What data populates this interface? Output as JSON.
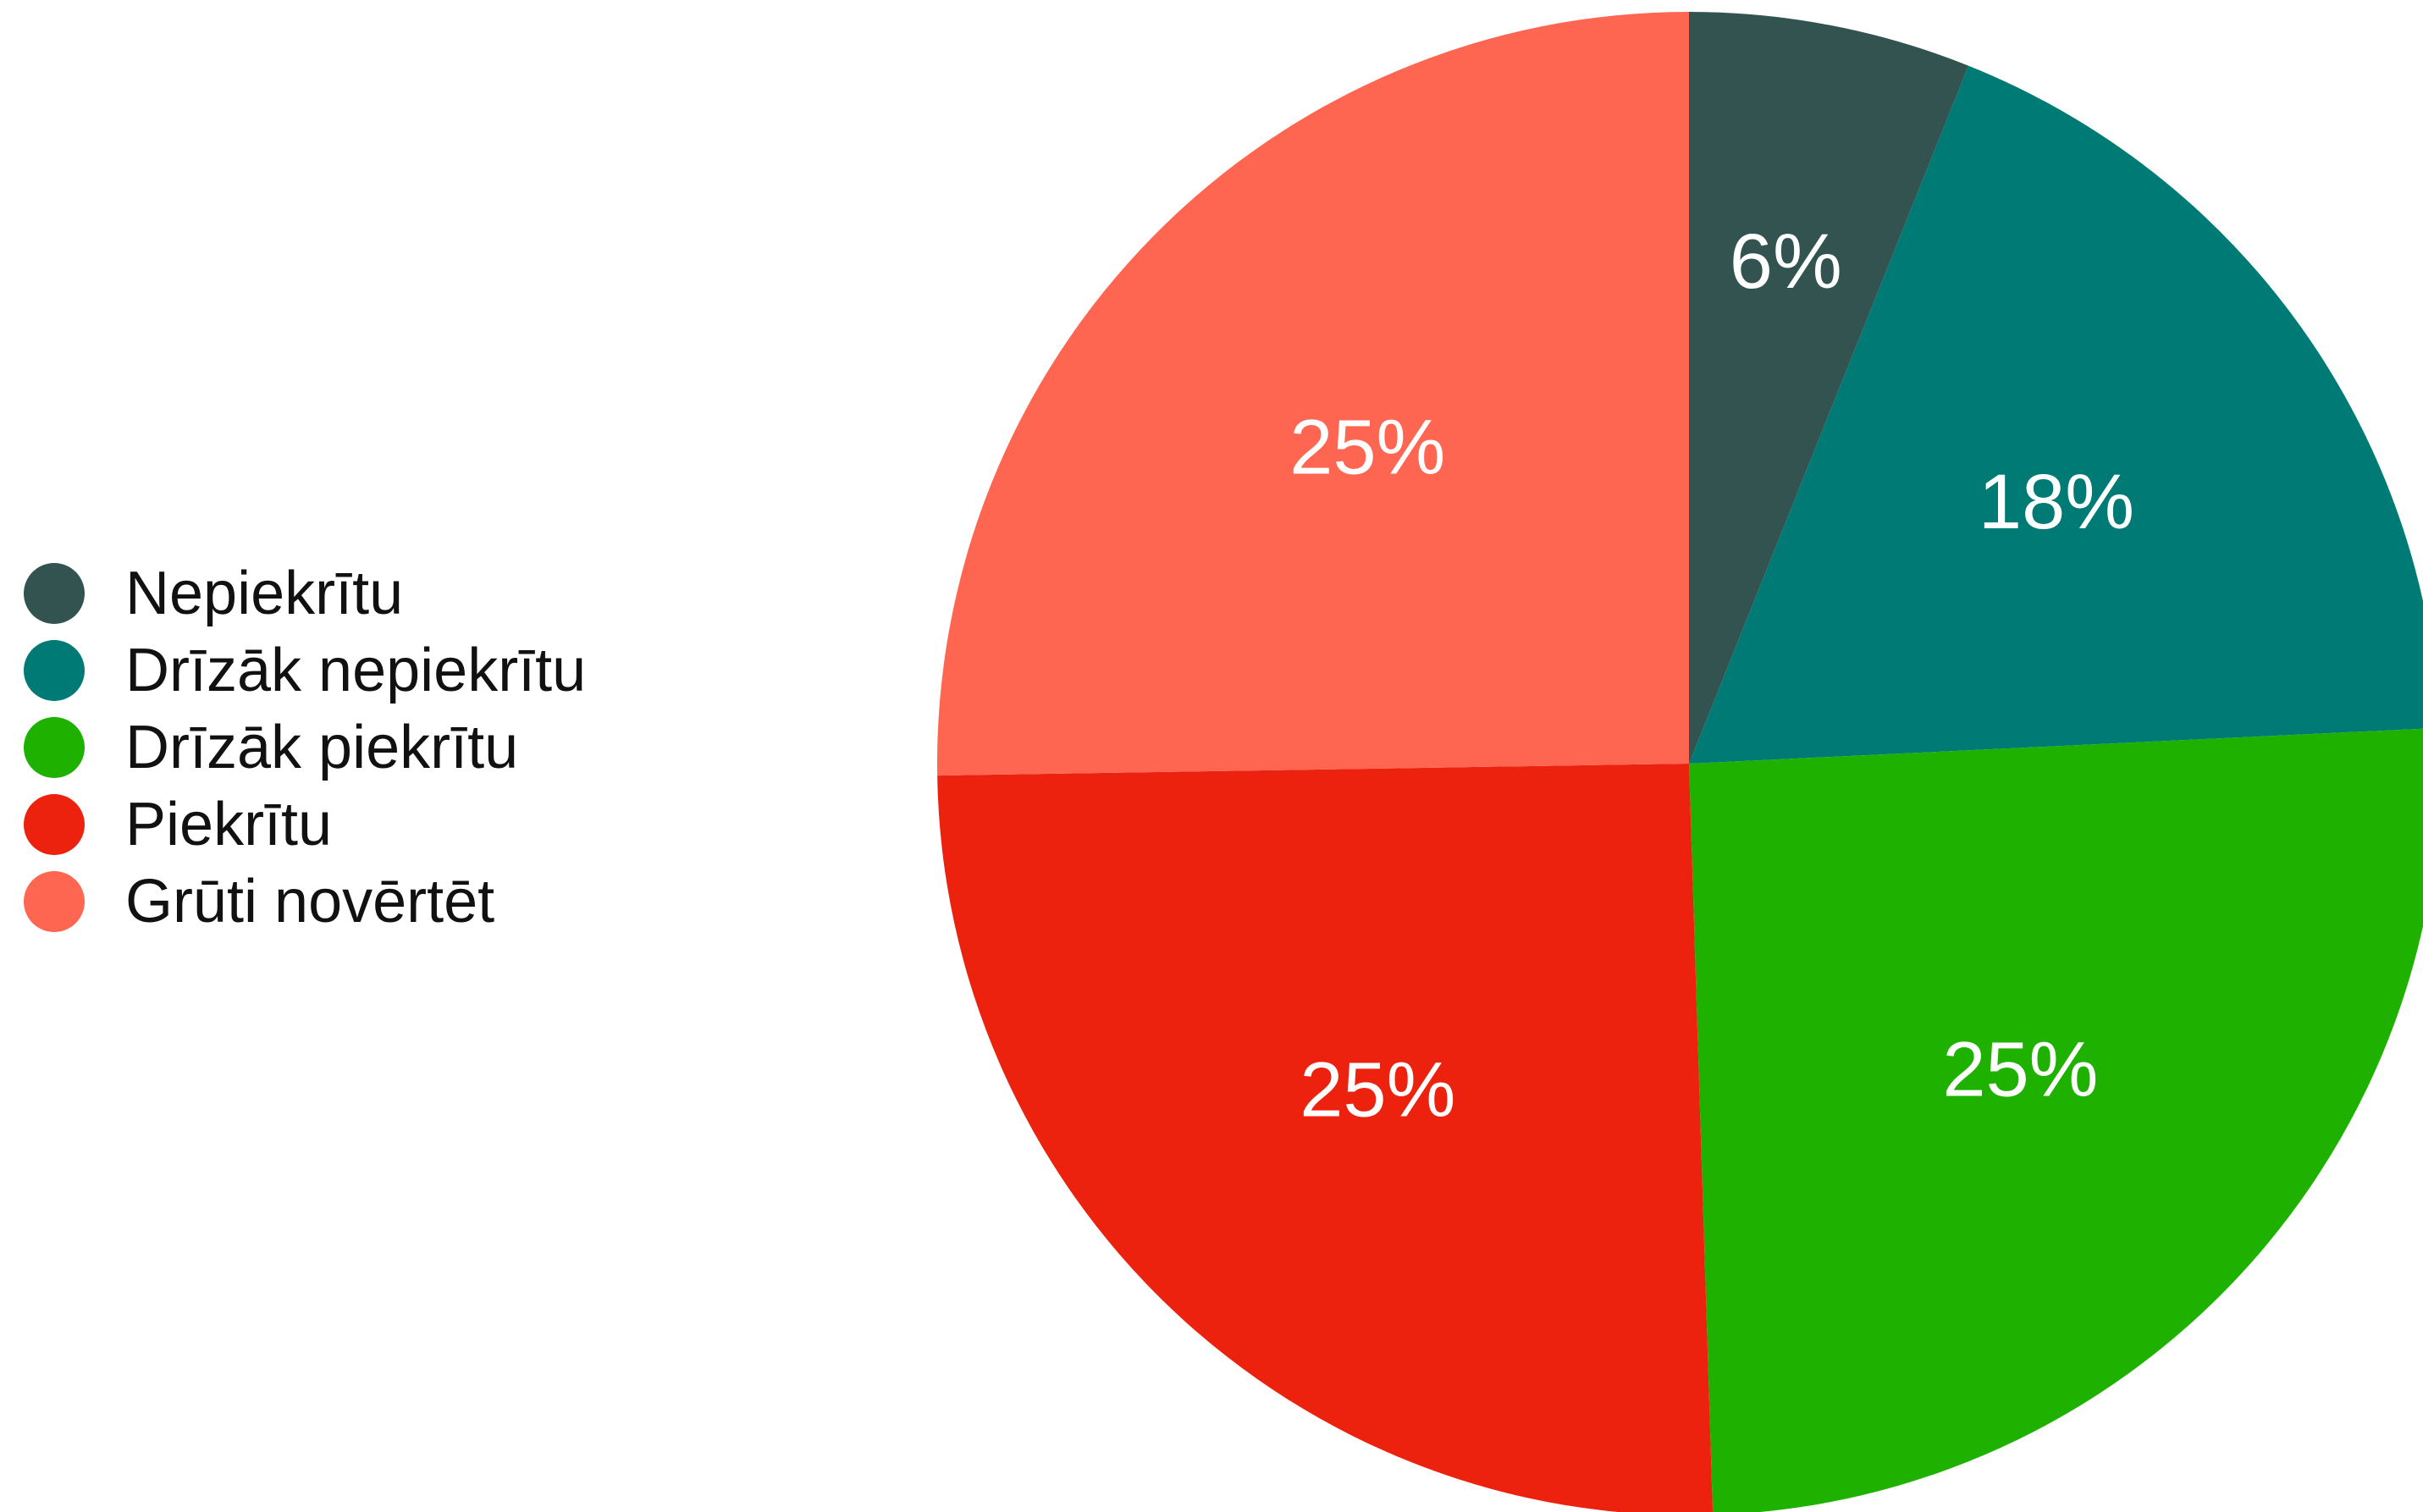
{
  "chart_data": {
    "type": "pie",
    "title": "",
    "categories": [
      "Nepiekrītu",
      "Drīzāk nepiekrītu",
      "Drīzāk piekrītu",
      "Piekrītu",
      "Grūti novērtēt"
    ],
    "values": [
      6,
      18,
      25,
      25,
      25
    ],
    "value_labels": [
      "6%",
      "18%",
      "25%",
      "25%",
      "25%"
    ],
    "colors": [
      "#32534f",
      "#007a74",
      "#1fb100",
      "#ec220f",
      "#ff6651"
    ],
    "legend_position": "left",
    "start_angle": "12 o'clock, clockwise"
  }
}
